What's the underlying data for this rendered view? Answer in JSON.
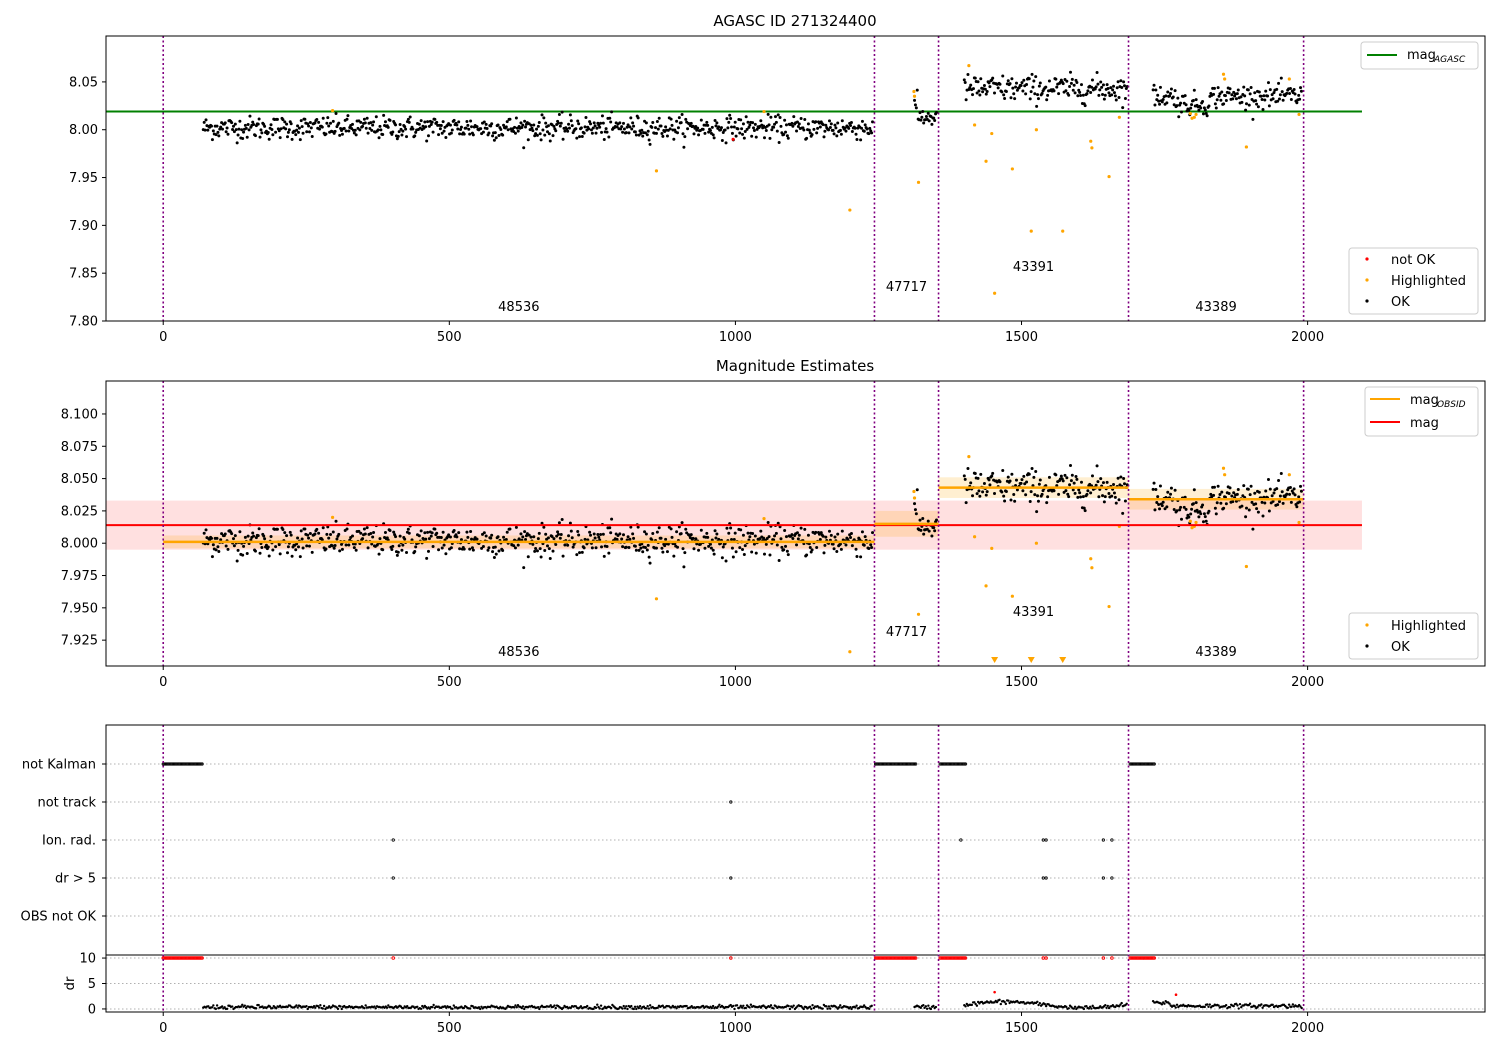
{
  "figure": {
    "title_top": "AGASC ID 271324400",
    "title_mid": "Magnitude Estimates"
  },
  "colors": {
    "ok": "#000000",
    "highlighted": "#ffa500",
    "not_ok": "#ff0000",
    "agasc_line": "#008000",
    "mag_line": "#ff0000",
    "obsid_line": "#ffa500",
    "obs_boundary": "#800080",
    "grid": "#b0b0b0"
  },
  "legends": {
    "top_line": "mag",
    "top_line_sub": "AGASC",
    "points": [
      "not OK",
      "Highlighted",
      "OK"
    ],
    "mid_line_1": "mag",
    "mid_line_1_sub": "OBSID",
    "mid_line_2": "mag",
    "mid_points": [
      "Highlighted",
      "OK"
    ]
  },
  "observations": [
    {
      "obsid": "48536",
      "start": 0,
      "end": 1243
    },
    {
      "obsid": "47717",
      "start": 1243,
      "end": 1355
    },
    {
      "obsid": "43391",
      "start": 1355,
      "end": 1687
    },
    {
      "obsid": "43389",
      "start": 1687,
      "end": 1993
    }
  ],
  "flag_labels": [
    "not Kalman",
    "not track",
    "Ion. rad.",
    "dr > 5",
    "OBS not OK"
  ],
  "chart_data": [
    {
      "type": "scatter",
      "title": "AGASC ID 271324400",
      "xlim": [
        -100,
        2310
      ],
      "ylim": [
        7.8,
        8.098
      ],
      "xticks": [
        0,
        500,
        1000,
        1500,
        2000
      ],
      "yticks": [
        7.8,
        7.85,
        7.9,
        7.95,
        8.0,
        8.05
      ],
      "ytick_labels": [
        "7.80",
        "7.85",
        "7.90",
        "7.95",
        "8.00",
        "8.05"
      ],
      "mag_agasc": 8.019,
      "segments": [
        {
          "obsid": "48536",
          "x_range": [
            70,
            1240
          ],
          "mean": 8.002,
          "scatter": 0.006
        },
        {
          "obsid": "47717",
          "x_range": [
            1313,
            1352
          ],
          "mean": 8.013,
          "scatter": 0.005
        },
        {
          "obsid": "43391",
          "x_range": [
            1400,
            1685
          ],
          "mean": 8.043,
          "scatter": 0.007
        },
        {
          "obsid": "43389",
          "x_range": [
            1730,
            1990
          ],
          "mean": 8.035,
          "scatter": 0.006
        }
      ],
      "highlighted": [
        [
          296,
          8.02
        ],
        [
          862,
          7.957
        ],
        [
          1050,
          8.019
        ],
        [
          1200,
          7.916
        ],
        [
          1312,
          8.04
        ],
        [
          1313,
          8.035
        ],
        [
          1320,
          7.945
        ],
        [
          1408,
          8.067
        ],
        [
          1418,
          8.005
        ],
        [
          1438,
          7.967
        ],
        [
          1448,
          7.996
        ],
        [
          1453,
          7.829
        ],
        [
          1484,
          7.959
        ],
        [
          1517,
          7.894
        ],
        [
          1526,
          8.0
        ],
        [
          1572,
          7.894
        ],
        [
          1621,
          7.988
        ],
        [
          1623,
          7.981
        ],
        [
          1653,
          7.951
        ],
        [
          1671,
          8.013
        ],
        [
          1795,
          8.017
        ],
        [
          1798,
          8.012
        ],
        [
          1802,
          8.013
        ],
        [
          1805,
          8.016
        ],
        [
          1853,
          8.058
        ],
        [
          1855,
          8.053
        ],
        [
          1893,
          7.982
        ],
        [
          1968,
          8.053
        ],
        [
          1985,
          8.016
        ]
      ],
      "not_ok": [
        [
          996,
          7.99
        ]
      ],
      "legend_position": "lower-right"
    },
    {
      "type": "scatter",
      "title": "Magnitude Estimates",
      "xlim": [
        -100,
        2310
      ],
      "ylim": [
        7.905,
        8.1255
      ],
      "xticks": [
        0,
        500,
        1000,
        1500,
        2000
      ],
      "yticks": [
        7.925,
        7.95,
        7.975,
        8.0,
        8.025,
        8.05,
        8.075,
        8.1
      ],
      "ytick_labels": [
        "7.925",
        "7.950",
        "7.975",
        "8.000",
        "8.025",
        "8.050",
        "8.075",
        "8.100"
      ],
      "mag": 8.014,
      "mag_band": [
        7.995,
        8.033
      ],
      "mag_obsid": [
        {
          "obsid": "48536",
          "x_range": [
            0,
            1243
          ],
          "value": 8.001,
          "band": [
            7.996,
            8.006
          ]
        },
        {
          "obsid": "47717",
          "x_range": [
            1243,
            1355
          ],
          "value": 8.015,
          "band": [
            8.005,
            8.025
          ]
        },
        {
          "obsid": "43391",
          "x_range": [
            1355,
            1687
          ],
          "value": 8.043,
          "band": [
            8.035,
            8.051
          ]
        },
        {
          "obsid": "43389",
          "x_range": [
            1687,
            1993
          ],
          "value": 8.034,
          "band": [
            8.026,
            8.042
          ]
        }
      ],
      "below_range_markers": [
        1453,
        1517,
        1572
      ],
      "legend_position": "lower-right"
    },
    {
      "type": "scatter",
      "title": "",
      "xlim": [
        -100,
        2310
      ],
      "flag_rows": [
        "not Kalman",
        "not track",
        "Ion. rad.",
        "dr > 5",
        "OBS not OK"
      ],
      "not_kalman_ranges": [
        [
          0,
          68
        ],
        [
          1245,
          1315
        ],
        [
          1358,
          1403
        ],
        [
          1690,
          1733
        ]
      ],
      "not_track": [
        992
      ],
      "ion_rad": [
        402,
        1394,
        1538,
        1543,
        1643,
        1658
      ],
      "dr_gt_5": [
        402,
        992,
        1538,
        1543,
        1643,
        1658
      ],
      "ylabel": "dr",
      "dr_ylim": [
        -0.6,
        10.6
      ],
      "dr_yticks": [
        0,
        5,
        10
      ],
      "dr_clipped_at_10": [
        402,
        992,
        1538,
        1543,
        1643,
        1658
      ],
      "dr_outliers": [
        [
          1453,
          3.3
        ],
        [
          1770,
          2.8
        ]
      ],
      "xticks": [
        0,
        500,
        1000,
        1500,
        2000
      ]
    }
  ]
}
